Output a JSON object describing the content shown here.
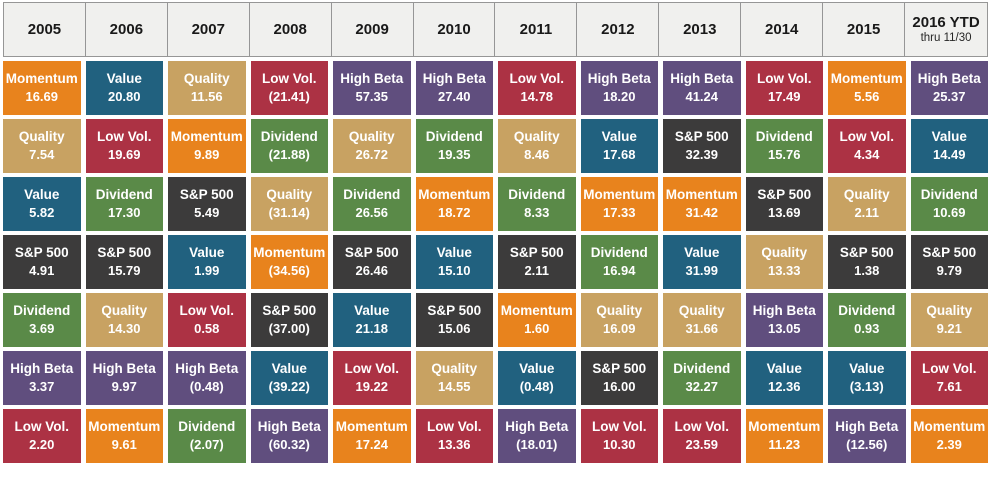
{
  "colors": {
    "Momentum": "#E8831D",
    "Value": "#21617F",
    "Quality": "#C8A262",
    "Low Vol.": "#AC3244",
    "High Beta": "#604E7E",
    "Dividend": "#5A8A48",
    "S&P 500": "#3C3B3B"
  },
  "cell_text_color": "#FFFFFF",
  "header_background": "#F0F0EE",
  "factors": [
    "Momentum",
    "Value",
    "Quality",
    "Low Vol.",
    "High Beta",
    "Dividend",
    "S&P 500"
  ],
  "chart_data": {
    "type": "table",
    "description_rows": 7,
    "columns": [
      {
        "year": "2005",
        "entries": [
          {
            "factor": "Momentum",
            "value": 16.69,
            "display": "16.69"
          },
          {
            "factor": "Quality",
            "value": 7.54,
            "display": "7.54"
          },
          {
            "factor": "Value",
            "value": 5.82,
            "display": "5.82"
          },
          {
            "factor": "S&P 500",
            "value": 4.91,
            "display": "4.91"
          },
          {
            "factor": "Dividend",
            "value": 3.69,
            "display": "3.69"
          },
          {
            "factor": "High Beta",
            "value": 3.37,
            "display": "3.37"
          },
          {
            "factor": "Low Vol.",
            "value": 2.2,
            "display": "2.20"
          }
        ]
      },
      {
        "year": "2006",
        "entries": [
          {
            "factor": "Value",
            "value": 20.8,
            "display": "20.80"
          },
          {
            "factor": "Low Vol.",
            "value": 19.69,
            "display": "19.69"
          },
          {
            "factor": "Dividend",
            "value": 17.3,
            "display": "17.30"
          },
          {
            "factor": "S&P 500",
            "value": 15.79,
            "display": "15.79"
          },
          {
            "factor": "Quality",
            "value": 14.3,
            "display": "14.30"
          },
          {
            "factor": "High Beta",
            "value": 9.97,
            "display": "9.97"
          },
          {
            "factor": "Momentum",
            "value": 9.61,
            "display": "9.61"
          }
        ]
      },
      {
        "year": "2007",
        "entries": [
          {
            "factor": "Quality",
            "value": 11.56,
            "display": "11.56"
          },
          {
            "factor": "Momentum",
            "value": 9.89,
            "display": "9.89"
          },
          {
            "factor": "S&P 500",
            "value": 5.49,
            "display": "5.49"
          },
          {
            "factor": "Value",
            "value": 1.99,
            "display": "1.99"
          },
          {
            "factor": "Low Vol.",
            "value": 0.58,
            "display": "0.58"
          },
          {
            "factor": "High Beta",
            "value": -0.48,
            "display": "(0.48)"
          },
          {
            "factor": "Dividend",
            "value": -2.07,
            "display": "(2.07)"
          }
        ]
      },
      {
        "year": "2008",
        "entries": [
          {
            "factor": "Low Vol.",
            "value": -21.41,
            "display": "(21.41)"
          },
          {
            "factor": "Dividend",
            "value": -21.88,
            "display": "(21.88)"
          },
          {
            "factor": "Quality",
            "value": -31.14,
            "display": "(31.14)"
          },
          {
            "factor": "Momentum",
            "value": -34.56,
            "display": "(34.56)"
          },
          {
            "factor": "S&P 500",
            "value": -37.0,
            "display": "(37.00)"
          },
          {
            "factor": "Value",
            "value": -39.22,
            "display": "(39.22)"
          },
          {
            "factor": "High Beta",
            "value": -60.32,
            "display": "(60.32)"
          }
        ]
      },
      {
        "year": "2009",
        "entries": [
          {
            "factor": "High Beta",
            "value": 57.35,
            "display": "57.35"
          },
          {
            "factor": "Quality",
            "value": 26.72,
            "display": "26.72"
          },
          {
            "factor": "Dividend",
            "value": 26.56,
            "display": "26.56"
          },
          {
            "factor": "S&P 500",
            "value": 26.46,
            "display": "26.46"
          },
          {
            "factor": "Value",
            "value": 21.18,
            "display": "21.18"
          },
          {
            "factor": "Low Vol.",
            "value": 19.22,
            "display": "19.22"
          },
          {
            "factor": "Momentum",
            "value": 17.24,
            "display": "17.24"
          }
        ]
      },
      {
        "year": "2010",
        "entries": [
          {
            "factor": "High Beta",
            "value": 27.4,
            "display": "27.40"
          },
          {
            "factor": "Dividend",
            "value": 19.35,
            "display": "19.35"
          },
          {
            "factor": "Momentum",
            "value": 18.72,
            "display": "18.72"
          },
          {
            "factor": "Value",
            "value": 15.1,
            "display": "15.10"
          },
          {
            "factor": "S&P 500",
            "value": 15.06,
            "display": "15.06"
          },
          {
            "factor": "Quality",
            "value": 14.55,
            "display": "14.55"
          },
          {
            "factor": "Low Vol.",
            "value": 13.36,
            "display": "13.36"
          }
        ]
      },
      {
        "year": "2011",
        "entries": [
          {
            "factor": "Low Vol.",
            "value": 14.78,
            "display": "14.78"
          },
          {
            "factor": "Quality",
            "value": 8.46,
            "display": "8.46"
          },
          {
            "factor": "Dividend",
            "value": 8.33,
            "display": "8.33"
          },
          {
            "factor": "S&P 500",
            "value": 2.11,
            "display": "2.11"
          },
          {
            "factor": "Momentum",
            "value": 1.6,
            "display": "1.60"
          },
          {
            "factor": "Value",
            "value": -0.48,
            "display": "(0.48)"
          },
          {
            "factor": "High Beta",
            "value": -18.01,
            "display": "(18.01)"
          }
        ]
      },
      {
        "year": "2012",
        "entries": [
          {
            "factor": "High Beta",
            "value": 18.2,
            "display": "18.20"
          },
          {
            "factor": "Value",
            "value": 17.68,
            "display": "17.68"
          },
          {
            "factor": "Momentum",
            "value": 17.33,
            "display": "17.33"
          },
          {
            "factor": "Dividend",
            "value": 16.94,
            "display": "16.94"
          },
          {
            "factor": "Quality",
            "value": 16.09,
            "display": "16.09"
          },
          {
            "factor": "S&P 500",
            "value": 16.0,
            "display": "16.00"
          },
          {
            "factor": "Low Vol.",
            "value": 10.3,
            "display": "10.30"
          }
        ]
      },
      {
        "year": "2013",
        "entries": [
          {
            "factor": "High Beta",
            "value": 41.24,
            "display": "41.24"
          },
          {
            "factor": "S&P 500",
            "value": 32.39,
            "display": "32.39"
          },
          {
            "factor": "Momentum",
            "value": 31.42,
            "display": "31.42"
          },
          {
            "factor": "Value",
            "value": 31.99,
            "display": "31.99"
          },
          {
            "factor": "Quality",
            "value": 31.66,
            "display": "31.66"
          },
          {
            "factor": "Dividend",
            "value": 32.27,
            "display": "32.27"
          },
          {
            "factor": "Low Vol.",
            "value": 23.59,
            "display": "23.59"
          }
        ]
      },
      {
        "year": "2014",
        "entries": [
          {
            "factor": "Low Vol.",
            "value": 17.49,
            "display": "17.49"
          },
          {
            "factor": "Dividend",
            "value": 15.76,
            "display": "15.76"
          },
          {
            "factor": "S&P 500",
            "value": 13.69,
            "display": "13.69"
          },
          {
            "factor": "Quality",
            "value": 13.33,
            "display": "13.33"
          },
          {
            "factor": "High Beta",
            "value": 13.05,
            "display": "13.05"
          },
          {
            "factor": "Value",
            "value": 12.36,
            "display": "12.36"
          },
          {
            "factor": "Momentum",
            "value": 11.23,
            "display": "11.23"
          }
        ]
      },
      {
        "year": "2015",
        "entries": [
          {
            "factor": "Momentum",
            "value": 5.56,
            "display": "5.56"
          },
          {
            "factor": "Low Vol.",
            "value": 4.34,
            "display": "4.34"
          },
          {
            "factor": "Quality",
            "value": 2.11,
            "display": "2.11"
          },
          {
            "factor": "S&P 500",
            "value": 1.38,
            "display": "1.38"
          },
          {
            "factor": "Dividend",
            "value": 0.93,
            "display": "0.93"
          },
          {
            "factor": "Value",
            "value": -3.13,
            "display": "(3.13)"
          },
          {
            "factor": "High Beta",
            "value": -12.56,
            "display": "(12.56)"
          }
        ]
      },
      {
        "year": "2016 YTD",
        "note": "thru 11/30",
        "entries": [
          {
            "factor": "High Beta",
            "value": 25.37,
            "display": "25.37"
          },
          {
            "factor": "Value",
            "value": 14.49,
            "display": "14.49"
          },
          {
            "factor": "Dividend",
            "value": 10.69,
            "display": "10.69"
          },
          {
            "factor": "S&P 500",
            "value": 9.79,
            "display": "9.79"
          },
          {
            "factor": "Quality",
            "value": 9.21,
            "display": "9.21"
          },
          {
            "factor": "Low Vol.",
            "value": 7.61,
            "display": "7.61"
          },
          {
            "factor": "Momentum",
            "value": 2.39,
            "display": "2.39"
          }
        ]
      }
    ]
  }
}
